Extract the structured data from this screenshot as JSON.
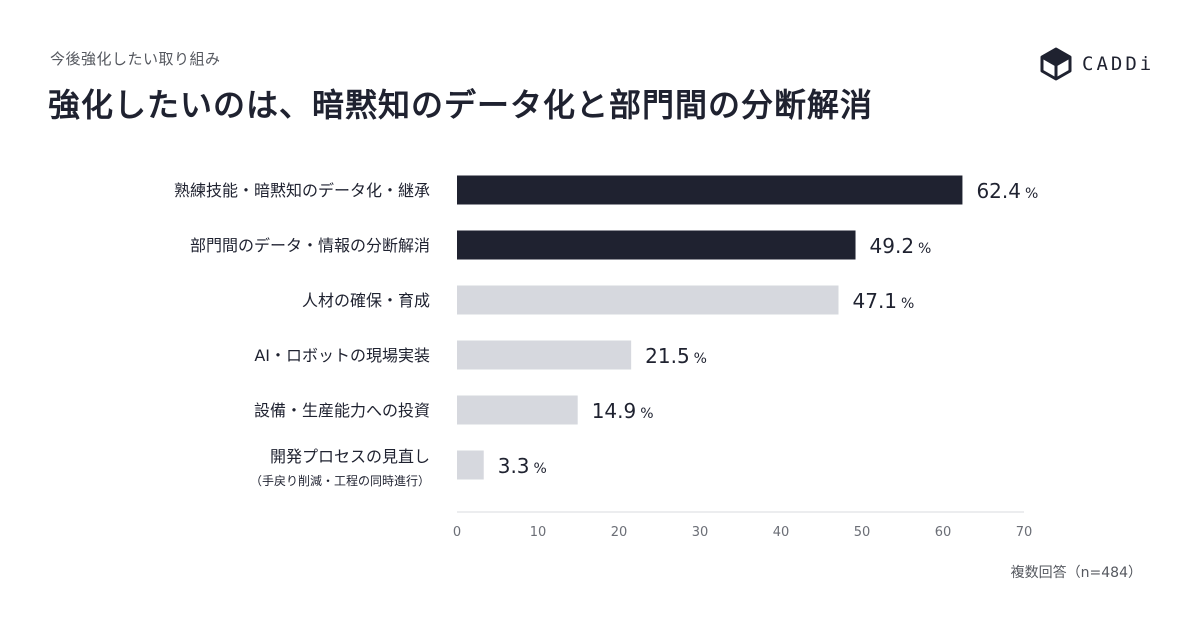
{
  "header": {
    "subtitle": "今後強化したい取り組み",
    "title": "強化したいのは、暗黙知のデータ化と部門間の分断解消"
  },
  "logo": {
    "text": "CADDi",
    "icon": "cube-icon"
  },
  "note": "複数回答（n=484）",
  "colors": {
    "dark": "#1f2230",
    "light": "#d6d8de",
    "axis": "#e6e7ea"
  },
  "chart_data": {
    "type": "bar",
    "orientation": "horizontal",
    "categories": [
      [
        "熟練技能・暗黙知のデータ化・継承"
      ],
      [
        "部門間のデータ・情報の分断解消"
      ],
      [
        "人材の確保・育成"
      ],
      [
        "AI・ロボットの現場実装"
      ],
      [
        "設備・生産能力への投資"
      ],
      [
        "開発プロセスの見直し",
        "（手戻り削減・工程の同時進行）"
      ]
    ],
    "values": [
      62.4,
      49.2,
      47.1,
      21.5,
      14.9,
      3.3
    ],
    "value_labels": [
      "62.4",
      "49.2",
      "47.1",
      "21.5",
      "14.9",
      "3.3"
    ],
    "unit": "%",
    "highlight": [
      true,
      true,
      false,
      false,
      false,
      false
    ],
    "xlim": [
      0,
      70
    ],
    "xticks": [
      "0",
      "10",
      "20",
      "30",
      "40",
      "50",
      "60",
      "70"
    ]
  }
}
